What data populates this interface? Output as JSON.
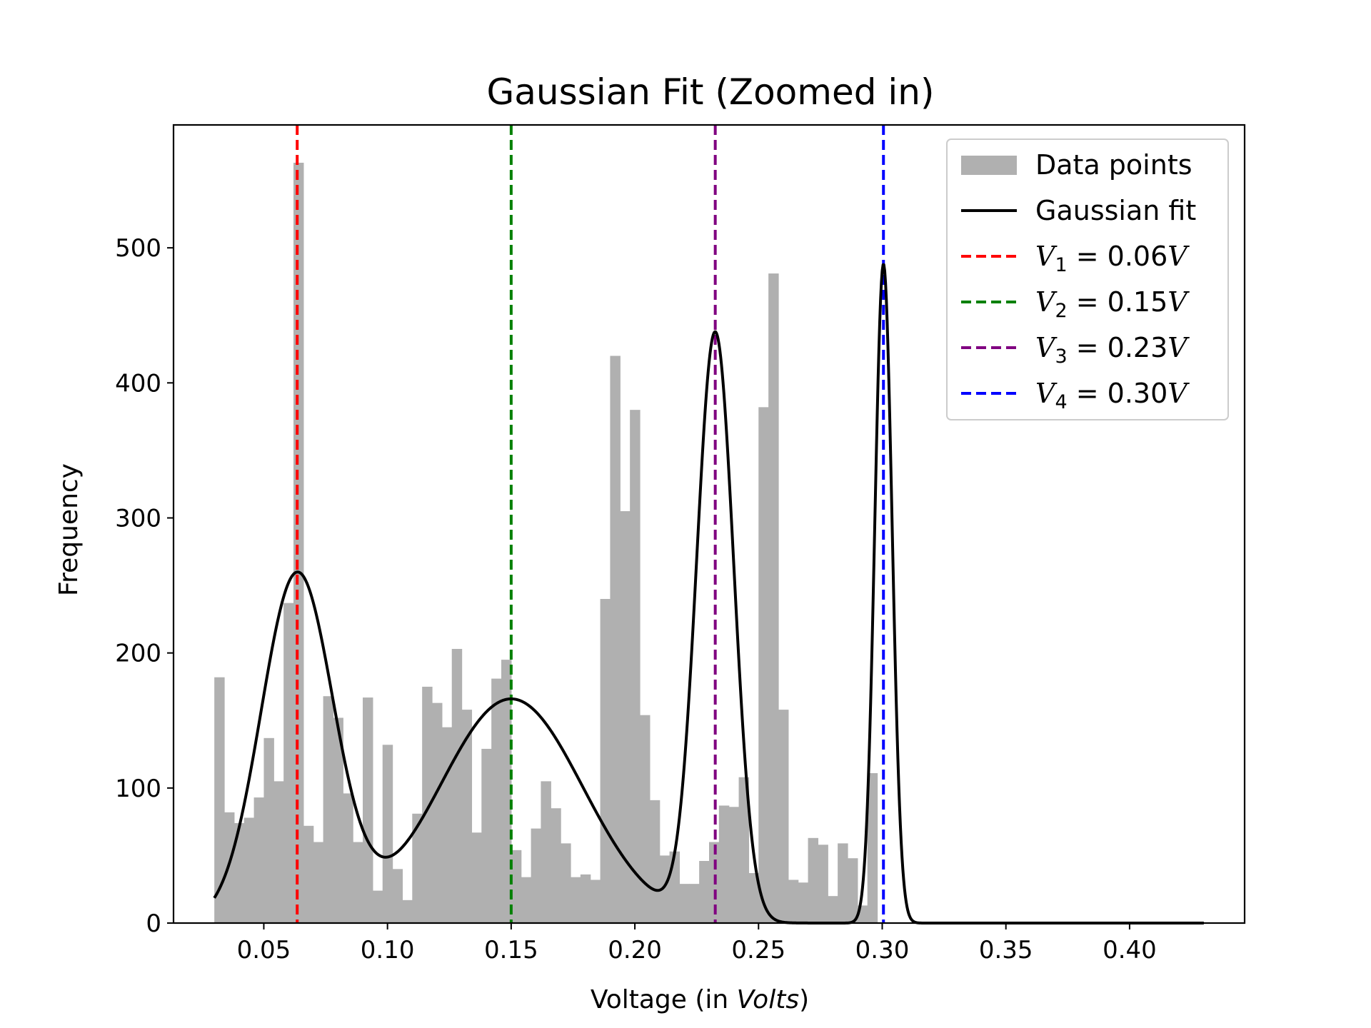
{
  "chart_data": {
    "type": "bar",
    "title": "Gaussian Fit (Zoomed in)",
    "xlabel": "Voltage (in Volts)",
    "ylabel": "Frequency",
    "xlim": [
      0.0135,
      0.4465
    ],
    "ylim": [
      0,
      591
    ],
    "xticks": [
      0.05,
      0.1,
      0.15,
      0.2,
      0.25,
      0.3,
      0.35,
      0.4
    ],
    "xtick_labels": [
      "0.05",
      "0.10",
      "0.15",
      "0.20",
      "0.25",
      "0.30",
      "0.35",
      "0.40"
    ],
    "yticks": [
      0,
      100,
      200,
      300,
      400,
      500
    ],
    "ytick_labels": [
      "0",
      "100",
      "200",
      "300",
      "400",
      "500"
    ],
    "grid": false,
    "legend_position": "top-right",
    "histogram": {
      "name": "Data points",
      "color": "#b0b0b0",
      "bin_start": 0.03,
      "bin_width": 0.004,
      "counts": [
        182,
        82,
        74,
        78,
        93,
        137,
        105,
        237,
        563,
        72,
        60,
        168,
        152,
        96,
        60,
        167,
        24,
        132,
        40,
        17,
        81,
        175,
        163,
        145,
        203,
        158,
        67,
        129,
        181,
        195,
        54,
        34,
        70,
        105,
        85,
        59,
        34,
        36,
        32,
        240,
        420,
        305,
        380,
        154,
        91,
        50,
        53,
        29,
        29,
        46,
        60,
        87,
        86,
        108,
        37,
        382,
        481,
        158,
        32,
        30,
        63,
        58,
        20,
        59,
        48,
        13,
        111
      ]
    },
    "gaussian_fit": {
      "name": "Gaussian fit",
      "color": "#000000",
      "x_range": [
        0.03,
        0.43
      ],
      "components": [
        {
          "mu": 0.0635,
          "sigma": 0.0146,
          "amp": 258
        },
        {
          "mu": 0.15,
          "sigma": 0.029,
          "amp": 166
        },
        {
          "mu": 0.2325,
          "sigma": 0.0075,
          "amp": 435
        },
        {
          "mu": 0.3005,
          "sigma": 0.0035,
          "amp": 488
        }
      ]
    },
    "vlines": [
      {
        "label": "V_1 = 0.06V",
        "sub": "1",
        "value_text": "0.06",
        "x": 0.0635,
        "color": "#ff0000"
      },
      {
        "label": "V_2 = 0.15V",
        "sub": "2",
        "value_text": "0.15",
        "x": 0.15,
        "color": "#008000"
      },
      {
        "label": "V_3 = 0.23V",
        "sub": "3",
        "value_text": "0.23",
        "x": 0.2325,
        "color": "#800080"
      },
      {
        "label": "V_4 = 0.30V",
        "sub": "4",
        "value_text": "0.30",
        "x": 0.3005,
        "color": "#0000ff"
      }
    ]
  }
}
